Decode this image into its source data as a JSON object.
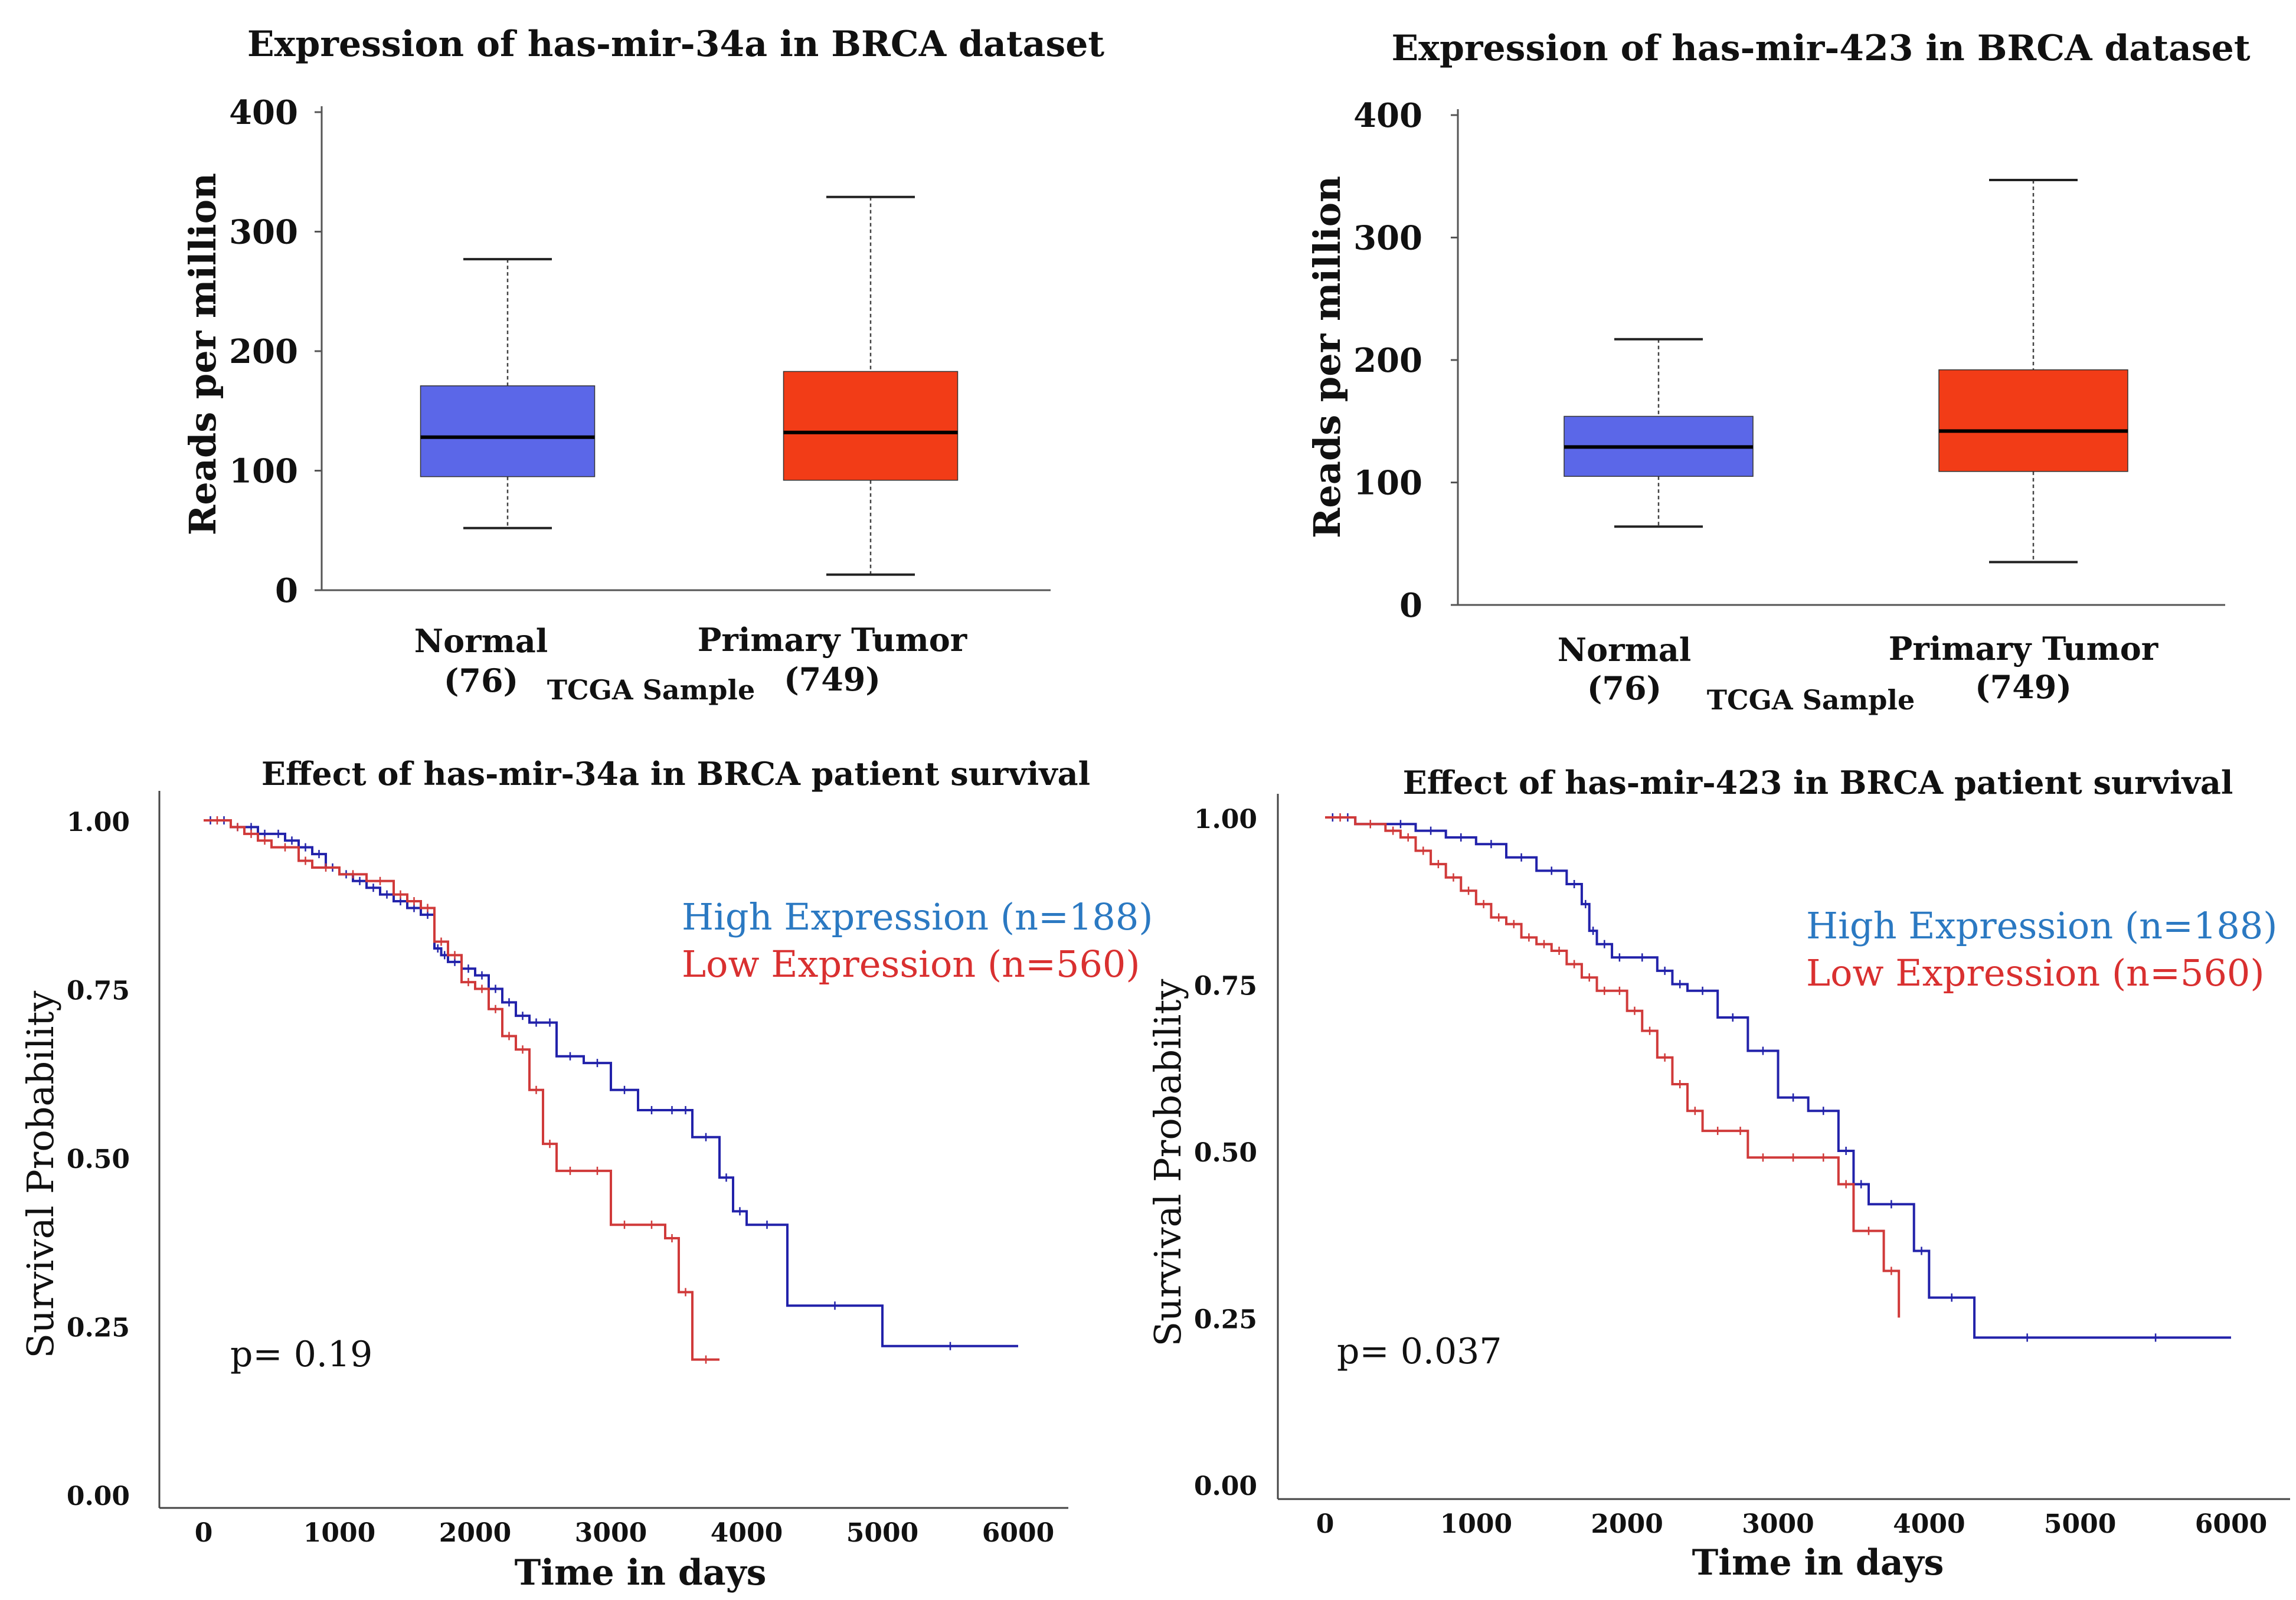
{
  "chart_data": [
    {
      "type": "box",
      "title": "Expression of has-mir-34a in BRCA dataset",
      "ylabel": "Reads per million",
      "xlabel": "TCGA Sample",
      "ylim": [
        0,
        400
      ],
      "yticks": [
        "0",
        "100",
        "200",
        "300",
        "400"
      ],
      "groups": [
        {
          "name": "Normal",
          "n": "(76)",
          "min": 52,
          "q1": 95,
          "median": 128,
          "q3": 171,
          "max": 277,
          "color": "#5b67e8"
        },
        {
          "name": "Primary Tumor",
          "n": "(749)",
          "min": 13,
          "q1": 92,
          "median": 132,
          "q3": 183,
          "max": 329,
          "color": "#f23c17"
        }
      ]
    },
    {
      "type": "box",
      "title": "Expression of has-mir-423 in BRCA dataset",
      "ylabel": "Reads per million",
      "xlabel": "TCGA Sample",
      "ylim": [
        0,
        400
      ],
      "yticks": [
        "0",
        "100",
        "200",
        "300",
        "400"
      ],
      "groups": [
        {
          "name": "Normal",
          "n": "(76)",
          "min": 64,
          "q1": 105,
          "median": 129,
          "q3": 154,
          "max": 217,
          "color": "#5b67e8"
        },
        {
          "name": "Primary Tumor",
          "n": "(749)",
          "min": 35,
          "q1": 109,
          "median": 142,
          "q3": 192,
          "max": 347,
          "color": "#f23c17"
        }
      ]
    },
    {
      "type": "line",
      "subtype": "kaplan-meier",
      "title": "Effect of has-mir-34a in BRCA patient survival",
      "ylabel": "Survival Probability",
      "xlabel": "Time in days",
      "xlim": [
        0,
        6000
      ],
      "ylim": [
        0,
        1
      ],
      "xticks": [
        "0",
        "1000",
        "2000",
        "3000",
        "4000",
        "5000",
        "6000"
      ],
      "yticks": [
        "0.00",
        "0.25",
        "0.50",
        "0.75",
        "1.00"
      ],
      "p_value": "p= 0.19",
      "series": [
        {
          "name": "High Expression (n=188)",
          "color": "#2222aa",
          "legend_color": "#2b79c2",
          "x": [
            0,
            100,
            200,
            300,
            400,
            500,
            600,
            700,
            800,
            900,
            1000,
            1100,
            1200,
            1300,
            1400,
            1500,
            1600,
            1700,
            1750,
            1800,
            1900,
            2000,
            2100,
            2200,
            2300,
            2400,
            2500,
            2600,
            2800,
            3000,
            3200,
            3400,
            3500,
            3600,
            3800,
            3900,
            4000,
            4300,
            5000,
            6000
          ],
          "y": [
            1.0,
            1.0,
            0.99,
            0.99,
            0.98,
            0.98,
            0.97,
            0.96,
            0.95,
            0.93,
            0.92,
            0.91,
            0.9,
            0.89,
            0.88,
            0.87,
            0.86,
            0.81,
            0.8,
            0.79,
            0.78,
            0.77,
            0.75,
            0.73,
            0.71,
            0.7,
            0.7,
            0.65,
            0.64,
            0.6,
            0.57,
            0.57,
            0.57,
            0.53,
            0.47,
            0.42,
            0.4,
            0.28,
            0.22,
            0.22
          ]
        },
        {
          "name": "Low Expression (n=560)",
          "color": "#d03a3a",
          "legend_color": "#d93030",
          "x": [
            0,
            200,
            300,
            400,
            500,
            700,
            800,
            1000,
            1200,
            1400,
            1500,
            1600,
            1700,
            1800,
            1900,
            2000,
            2100,
            2200,
            2300,
            2400,
            2500,
            2600,
            2800,
            3000,
            3200,
            3400,
            3500,
            3600,
            3800
          ],
          "y": [
            1.0,
            0.99,
            0.98,
            0.97,
            0.96,
            0.94,
            0.93,
            0.92,
            0.91,
            0.89,
            0.88,
            0.87,
            0.82,
            0.8,
            0.76,
            0.75,
            0.72,
            0.68,
            0.66,
            0.6,
            0.52,
            0.48,
            0.48,
            0.4,
            0.4,
            0.38,
            0.3,
            0.2,
            0.2
          ]
        }
      ]
    },
    {
      "type": "line",
      "subtype": "kaplan-meier",
      "title": "Effect of has-mir-423 in BRCA patient survival",
      "ylabel": "Survival Probability",
      "xlabel": "Time in days",
      "xlim": [
        0,
        6000
      ],
      "ylim": [
        0,
        1
      ],
      "xticks": [
        "0",
        "1000",
        "2000",
        "3000",
        "4000",
        "5000",
        "6000"
      ],
      "yticks": [
        "0.00",
        "0.25",
        "0.50",
        "0.75",
        "1.00"
      ],
      "p_value": "p= 0.037",
      "series": [
        {
          "name": "High Expression (n=188)",
          "color": "#2222aa",
          "legend_color": "#2b79c2",
          "x": [
            0,
            100,
            200,
            400,
            600,
            800,
            1000,
            1200,
            1400,
            1600,
            1700,
            1750,
            1800,
            1900,
            2000,
            2200,
            2300,
            2400,
            2600,
            2800,
            3000,
            3200,
            3400,
            3500,
            3600,
            3900,
            4000,
            4300,
            5000,
            6000
          ],
          "y": [
            1.0,
            1.0,
            0.99,
            0.99,
            0.98,
            0.97,
            0.96,
            0.94,
            0.92,
            0.9,
            0.87,
            0.83,
            0.81,
            0.79,
            0.79,
            0.77,
            0.75,
            0.74,
            0.7,
            0.65,
            0.58,
            0.56,
            0.5,
            0.45,
            0.42,
            0.35,
            0.28,
            0.22,
            0.22,
            0.22
          ]
        },
        {
          "name": "Low Expression (n=560)",
          "color": "#d03a3a",
          "legend_color": "#d93030",
          "x": [
            0,
            200,
            400,
            500,
            600,
            700,
            800,
            900,
            1000,
            1100,
            1200,
            1300,
            1400,
            1500,
            1600,
            1700,
            1800,
            1900,
            2000,
            2100,
            2200,
            2300,
            2400,
            2500,
            2700,
            2800,
            3000,
            3200,
            3400,
            3500,
            3700,
            3800
          ],
          "y": [
            1.0,
            0.99,
            0.98,
            0.97,
            0.95,
            0.93,
            0.91,
            0.89,
            0.87,
            0.85,
            0.84,
            0.82,
            0.81,
            0.8,
            0.78,
            0.76,
            0.74,
            0.74,
            0.71,
            0.68,
            0.64,
            0.6,
            0.56,
            0.53,
            0.53,
            0.49,
            0.49,
            0.49,
            0.45,
            0.38,
            0.32,
            0.25
          ]
        }
      ]
    }
  ]
}
